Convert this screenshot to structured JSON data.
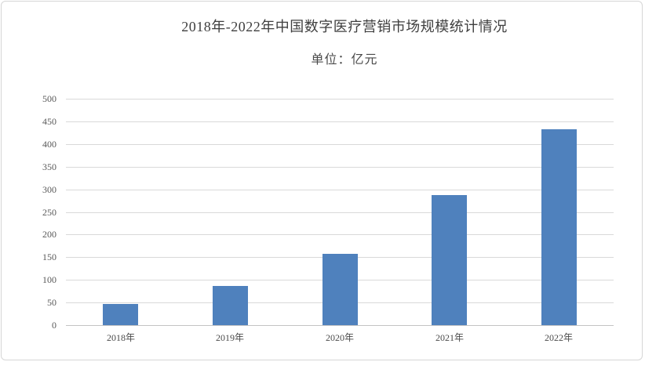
{
  "page": {
    "background": "#ffffff",
    "frame_border_color": "#d6d6d6"
  },
  "chart_data": {
    "type": "bar",
    "title": "2018年-2022年中国数字医疗营销市场规模统计情况",
    "subtitle": "单位：亿元",
    "unit": "亿元",
    "categories": [
      "2018年",
      "2019年",
      "2020年",
      "2021年",
      "2022年"
    ],
    "values": [
      47,
      86,
      158,
      288,
      433
    ],
    "xlabel": "",
    "ylabel": "",
    "ylim": [
      0,
      500
    ],
    "ytick_step": 50,
    "ytick_labels": [
      "0",
      "50",
      "100",
      "150",
      "200",
      "250",
      "300",
      "350",
      "400",
      "450",
      "500"
    ],
    "grid": true,
    "legend": "none",
    "bar_color": "#4f81bd",
    "gridline_color": "#d9d9d9",
    "axis_label_color": "#595959",
    "title_color": "#3f3f3f"
  }
}
